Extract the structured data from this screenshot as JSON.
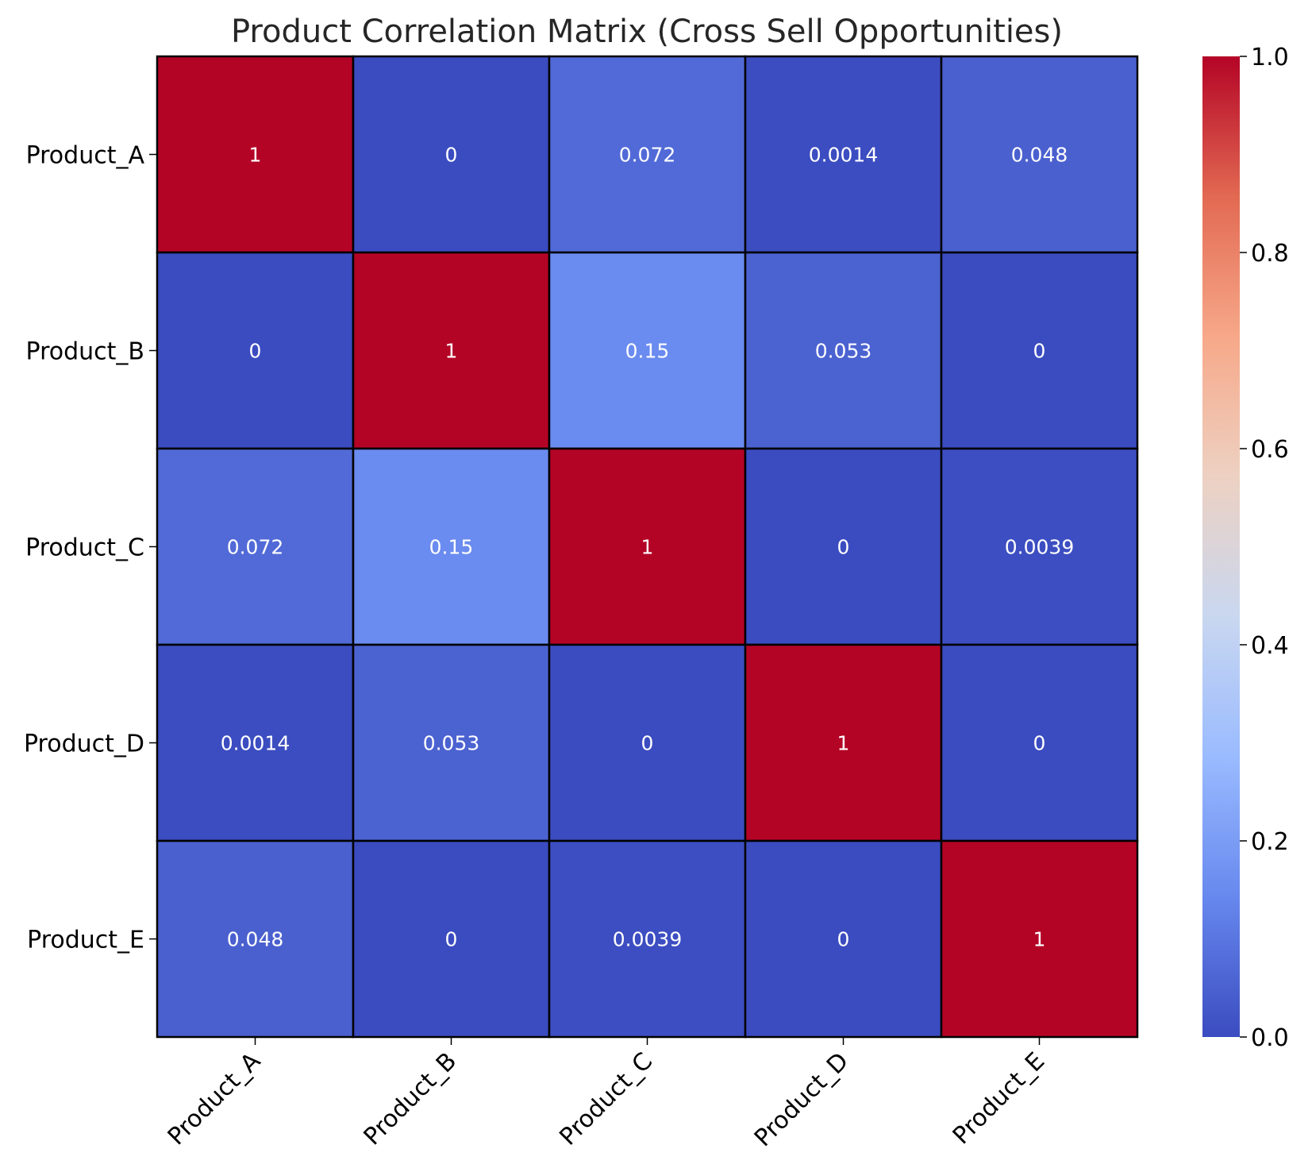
{
  "chart_data": {
    "type": "heatmap",
    "title": "Product Correlation Matrix (Cross Sell Opportunities)",
    "xlabel": "",
    "ylabel": "",
    "x_categories": [
      "Product_A",
      "Product_B",
      "Product_C",
      "Product_D",
      "Product_E"
    ],
    "y_categories": [
      "Product_A",
      "Product_B",
      "Product_C",
      "Product_D",
      "Product_E"
    ],
    "values": [
      [
        1,
        0,
        0.072,
        0.0014,
        0.048
      ],
      [
        0,
        1,
        0.15,
        0.053,
        0
      ],
      [
        0.072,
        0.15,
        1,
        0,
        0.0039
      ],
      [
        0.0014,
        0.053,
        0,
        1,
        0
      ],
      [
        0.048,
        0,
        0.0039,
        0,
        1
      ]
    ],
    "value_labels": [
      [
        "1",
        "0",
        "0.072",
        "0.0014",
        "0.048"
      ],
      [
        "0",
        "1",
        "0.15",
        "0.053",
        "0"
      ],
      [
        "0.072",
        "0.15",
        "1",
        "0",
        "0.0039"
      ],
      [
        "0.0014",
        "0.053",
        "0",
        "1",
        "0"
      ],
      [
        "0.048",
        "0",
        "0.0039",
        "0",
        "1"
      ]
    ],
    "colormap": "coolwarm",
    "vmin": 0,
    "vmax": 1,
    "colorbar_ticks": [
      0.0,
      0.2,
      0.4,
      0.6,
      0.8,
      1.0
    ],
    "colorbar_tick_labels": [
      "0.0",
      "0.2",
      "0.4",
      "0.6",
      "0.8",
      "1.0"
    ],
    "colorbar_colors": [
      "#3b4cc0",
      "#6788ee",
      "#9abbff",
      "#c9d7f0",
      "#edd1c2",
      "#f7a889",
      "#e26952",
      "#b40426"
    ],
    "cell_border_color": "#000000",
    "annotation_color": "#ffffff"
  }
}
